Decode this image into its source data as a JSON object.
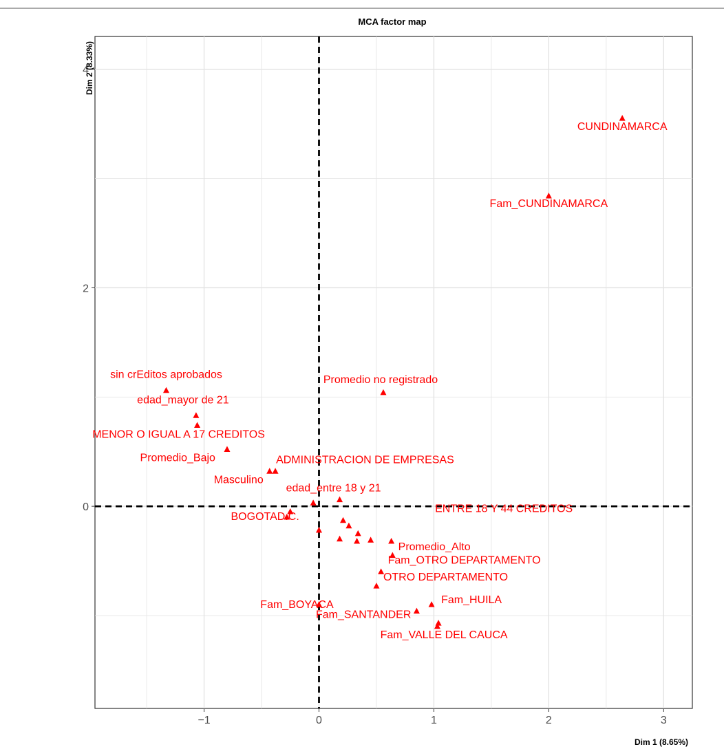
{
  "chart_data": {
    "type": "scatter",
    "title": "MCA factor map",
    "xlabel": "Dim 1 (8.65%)",
    "ylabel": "Dim 2 (8.33%)",
    "xlim": [
      -1.95,
      3.25
    ],
    "ylim": [
      -1.85,
      4.3
    ],
    "xticks": [
      -1,
      0,
      1,
      2,
      3
    ],
    "yticks": [
      0,
      2,
      4
    ],
    "xtick_labels": [
      "−1",
      "0",
      "1",
      "2",
      "3"
    ],
    "ytick_labels": [
      "0",
      "2",
      "4"
    ],
    "grid": true,
    "reference_lines": [
      {
        "axis": "x",
        "value": 0,
        "style": "dashed"
      },
      {
        "axis": "y",
        "value": 0,
        "style": "dashed"
      }
    ],
    "marker": "triangle",
    "color": "#ff0000",
    "points": [
      {
        "label": "CUNDINAMARCA",
        "x": 2.64,
        "y": 3.55
      },
      {
        "label": "Fam_CUNDINAMARCA",
        "x": 2.0,
        "y": 2.84
      },
      {
        "label": "Promedio no registrado",
        "x": 0.56,
        "y": 1.04
      },
      {
        "label": "sin crEditos aprobados",
        "x": -1.33,
        "y": 1.06
      },
      {
        "label": "edad_mayor de 21",
        "x": -1.07,
        "y": 0.83
      },
      {
        "label": "MENOR O IGUAL A 17 CREDITOS",
        "x": -1.06,
        "y": 0.74
      },
      {
        "label": "Promedio_Bajo",
        "x": -0.8,
        "y": 0.52
      },
      {
        "label": "ADMINISTRACION DE EMPRESAS",
        "x": -0.38,
        "y": 0.32
      },
      {
        "label": "Masculino",
        "x": -0.43,
        "y": 0.32
      },
      {
        "label": "edad_entre 18 y 21",
        "x": 0.18,
        "y": 0.06
      },
      {
        "label": "ENTRE 18 Y 44 CREDITOS",
        "x": -0.05,
        "y": 0.03
      },
      {
        "label": "BOGOTAD.C.",
        "x": -0.25,
        "y": -0.05
      },
      {
        "label": "",
        "x": -0.28,
        "y": -0.1
      },
      {
        "label": "",
        "x": 0.0,
        "y": -0.22
      },
      {
        "label": "",
        "x": 0.21,
        "y": -0.13
      },
      {
        "label": "",
        "x": 0.26,
        "y": -0.18
      },
      {
        "label": "",
        "x": 0.34,
        "y": -0.25
      },
      {
        "label": "",
        "x": 0.18,
        "y": -0.3
      },
      {
        "label": "",
        "x": 0.33,
        "y": -0.32
      },
      {
        "label": "",
        "x": 0.45,
        "y": -0.31
      },
      {
        "label": "Promedio_Alto",
        "x": 0.63,
        "y": -0.32
      },
      {
        "label": "",
        "x": 0.64,
        "y": -0.45
      },
      {
        "label": "Fam_OTRO DEPARTAMENTO",
        "x": 0.54,
        "y": -0.6
      },
      {
        "label": "OTRO DEPARTAMENTO",
        "x": 0.5,
        "y": -0.73
      },
      {
        "label": "Fam_BOYACA",
        "x": 0.0,
        "y": -0.9
      },
      {
        "label": "Fam_HUILA",
        "x": 0.98,
        "y": -0.9
      },
      {
        "label": "Fam_SANTANDER",
        "x": 0.85,
        "y": -0.96
      },
      {
        "label": "Fam_VALLE DEL CAUCA",
        "x": 1.04,
        "y": -1.07
      },
      {
        "label": "",
        "x": 1.03,
        "y": -1.1
      }
    ]
  }
}
